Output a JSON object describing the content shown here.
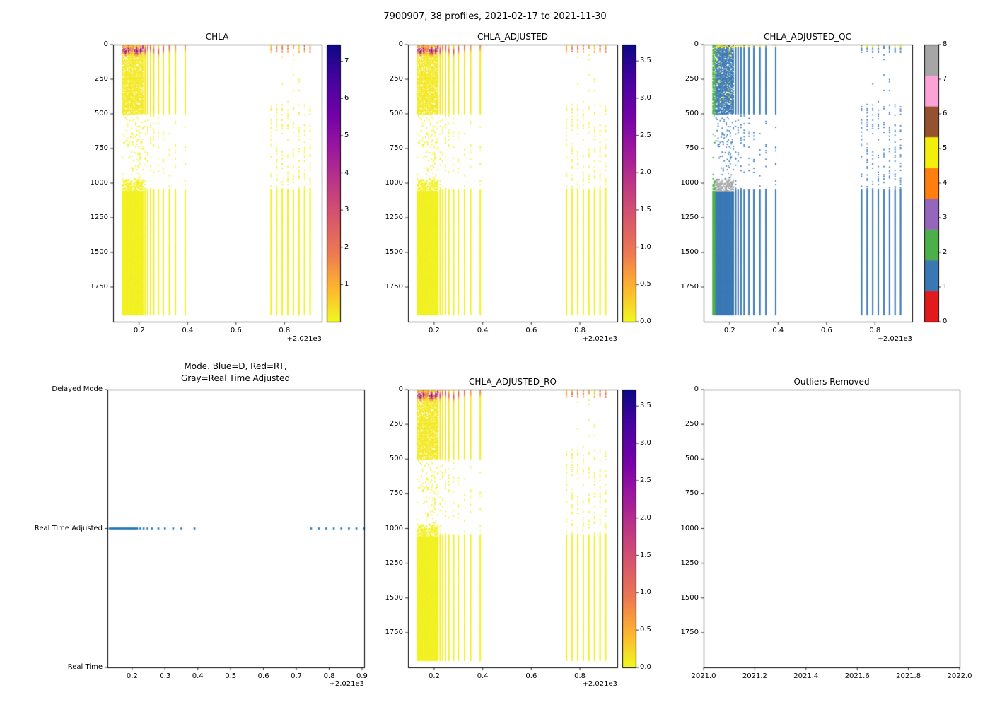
{
  "figure": {
    "suptitle": "7900907, 38 profiles, 2021-02-17 to 2021-11-30",
    "platform_id": "7900907",
    "n_profiles": 38,
    "date_start": "2021-02-17",
    "date_end": "2021-11-30",
    "background": "#ffffff"
  },
  "palette": {
    "axis": "#000000",
    "mode_dot": "#1f77b4",
    "qc_colors": [
      "#e31a1c",
      "#3a78b5",
      "#4daf4a",
      "#9467bd",
      "#ff7f0e",
      "#f2ef0c",
      "#96522e",
      "#fba3d6",
      "#a6a6a6"
    ],
    "plasma_stops": [
      [
        0,
        "#0d0887"
      ],
      [
        0.125,
        "#46039f"
      ],
      [
        0.25,
        "#7201a8"
      ],
      [
        0.375,
        "#9c179e"
      ],
      [
        0.5,
        "#bd3786"
      ],
      [
        0.625,
        "#d8576b"
      ],
      [
        0.75,
        "#ed7953"
      ],
      [
        0.875,
        "#fdb42f"
      ],
      [
        1,
        "#f0f921"
      ]
    ]
  },
  "profile_data": {
    "seed": 11,
    "dense": {
      "t_start": 2021.1315,
      "t_end": 2021.2155,
      "count": 21
    },
    "mid_times": [
      2021.225,
      2021.235,
      2021.247,
      2021.26,
      2021.28,
      2021.3,
      2021.325,
      2021.35,
      2021.39
    ],
    "late_times": [
      2021.745,
      2021.768,
      2021.791,
      2021.814,
      2021.837,
      2021.86,
      2021.883,
      2021.906
    ],
    "depth_max": 1950,
    "zones": {
      "upper_speckle": [
        0,
        500
      ],
      "sparse": [
        500,
        1050
      ],
      "solid": [
        1050,
        1950
      ],
      "qc_gray_band": [
        975,
        1060
      ]
    }
  },
  "chart_data": [
    {
      "id": "chla",
      "type": "profile-scatter",
      "title": "CHLA",
      "xlim": [
        2021.0925,
        2021.954
      ],
      "xticks": [
        2021.2,
        2021.4,
        2021.6,
        2021.8
      ],
      "xtick_labels": [
        "0.2",
        "0.4",
        "0.6",
        "0.8"
      ],
      "x_offset_label": "+2.021e3",
      "ylim": [
        0,
        2000
      ],
      "yticks": [
        0,
        250,
        500,
        750,
        1000,
        1250,
        1500,
        1750
      ],
      "ytick_labels": [
        "0",
        "250",
        "500",
        "750",
        "1000",
        "1250",
        "1500",
        "1750"
      ],
      "value_scale": 1.0,
      "colorbar": {
        "kind": "continuous",
        "cmap": "plasma_r",
        "vmin": 0,
        "vmax": 7.45,
        "ticks": [
          1,
          2,
          3,
          4,
          5,
          6,
          7
        ],
        "tick_labels": [
          "1",
          "2",
          "3",
          "4",
          "5",
          "6",
          "7"
        ]
      }
    },
    {
      "id": "chla_adjusted",
      "type": "profile-scatter",
      "title": "CHLA_ADJUSTED",
      "xlim": [
        2021.0925,
        2021.954
      ],
      "xticks": [
        2021.2,
        2021.4,
        2021.6,
        2021.8
      ],
      "xtick_labels": [
        "0.2",
        "0.4",
        "0.6",
        "0.8"
      ],
      "x_offset_label": "+2.021e3",
      "ylim": [
        0,
        2000
      ],
      "yticks": [
        0,
        250,
        500,
        750,
        1000,
        1250,
        1500,
        1750
      ],
      "ytick_labels": [
        "0",
        "250",
        "500",
        "750",
        "1000",
        "1250",
        "1500",
        "1750"
      ],
      "value_scale": 0.5,
      "colorbar": {
        "kind": "continuous",
        "cmap": "plasma_r",
        "vmin": 0,
        "vmax": 3.72,
        "ticks": [
          0,
          0.5,
          1.0,
          1.5,
          2.0,
          2.5,
          3.0,
          3.5
        ],
        "tick_labels": [
          "0.0",
          "0.5",
          "1.0",
          "1.5",
          "2.0",
          "2.5",
          "3.0",
          "3.5"
        ]
      }
    },
    {
      "id": "chla_adjusted_qc",
      "type": "qc-scatter",
      "title": "CHLA_ADJUSTED_QC",
      "xlim": [
        2021.0925,
        2021.954
      ],
      "xticks": [
        2021.2,
        2021.4,
        2021.6,
        2021.8
      ],
      "xtick_labels": [
        "0.2",
        "0.4",
        "0.6",
        "0.8"
      ],
      "x_offset_label": "+2.021e3",
      "ylim": [
        0,
        2000
      ],
      "yticks": [
        0,
        250,
        500,
        750,
        1000,
        1250,
        1500,
        1750
      ],
      "ytick_labels": [
        "0",
        "250",
        "500",
        "750",
        "1000",
        "1250",
        "1500",
        "1750"
      ],
      "colorbar": {
        "kind": "discrete",
        "n_colors": 9,
        "vmin": 0,
        "vmax": 8,
        "ticks": [
          0,
          1,
          2,
          3,
          4,
          5,
          6,
          7,
          8
        ],
        "tick_labels": [
          "0",
          "1",
          "2",
          "3",
          "4",
          "5",
          "6",
          "7",
          "8"
        ]
      }
    },
    {
      "id": "mode",
      "type": "mode-scatter",
      "title_lines": [
        "Mode. Blue=D, Red=RT,",
        "Gray=Real Time Adjusted"
      ],
      "xlim": [
        2021.125,
        2021.9065
      ],
      "xticks": [
        2021.2,
        2021.3,
        2021.4,
        2021.5,
        2021.6,
        2021.7,
        2021.8,
        2021.9
      ],
      "xtick_labels": [
        "0.2",
        "0.3",
        "0.4",
        "0.5",
        "0.6",
        "0.7",
        "0.8",
        "0.9"
      ],
      "x_offset_label": "+2.021e3",
      "ycategories": [
        "Delayed Mode",
        "Real Time Adjusted",
        "Real Time"
      ],
      "value": "Real Time Adjusted"
    },
    {
      "id": "chla_adjusted_ro",
      "type": "profile-scatter",
      "title": "CHLA_ADJUSTED_RO",
      "xlim": [
        2021.0925,
        2021.954
      ],
      "xticks": [
        2021.2,
        2021.4,
        2021.6,
        2021.8
      ],
      "xtick_labels": [
        "0.2",
        "0.4",
        "0.6",
        "0.8"
      ],
      "x_offset_label": "+2.021e3",
      "ylim": [
        0,
        2000
      ],
      "yticks": [
        0,
        250,
        500,
        750,
        1000,
        1250,
        1500,
        1750
      ],
      "ytick_labels": [
        "0",
        "250",
        "500",
        "750",
        "1000",
        "1250",
        "1500",
        "1750"
      ],
      "value_scale": 0.5,
      "colorbar": {
        "kind": "continuous",
        "cmap": "plasma_r",
        "vmin": 0,
        "vmax": 3.72,
        "ticks": [
          0,
          0.5,
          1.0,
          1.5,
          2.0,
          2.5,
          3.0,
          3.5
        ],
        "tick_labels": [
          "0.0",
          "0.5",
          "1.0",
          "1.5",
          "2.0",
          "2.5",
          "3.0",
          "3.5"
        ]
      }
    },
    {
      "id": "outliers_removed",
      "type": "empty",
      "title": "Outliers Removed",
      "xlim": [
        2021.0,
        2022.0
      ],
      "xticks": [
        2021.0,
        2021.2,
        2021.4,
        2021.6,
        2021.8,
        2022.0
      ],
      "xtick_labels": [
        "2021.0",
        "2021.2",
        "2021.4",
        "2021.6",
        "2021.8",
        "2022.0"
      ],
      "ylim": [
        0,
        2000
      ],
      "yticks": [
        0,
        250,
        500,
        750,
        1000,
        1250,
        1500,
        1750
      ],
      "ytick_labels": [
        "0",
        "250",
        "500",
        "750",
        "1000",
        "1250",
        "1500",
        "1750"
      ]
    }
  ]
}
